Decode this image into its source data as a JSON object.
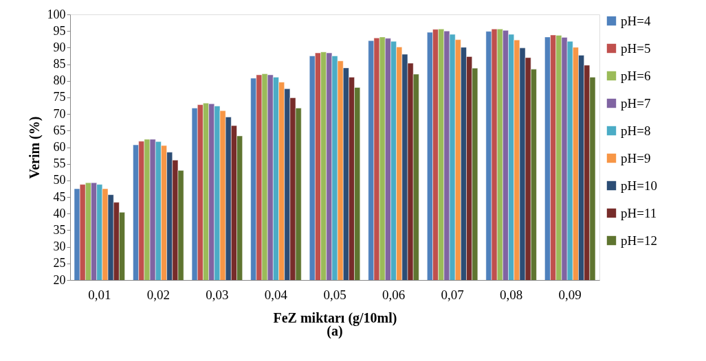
{
  "chart_data": {
    "type": "bar",
    "xlabel": "FeZ miktarı (g/10ml)",
    "ylabel": "Verim (%)",
    "annotations": [
      "(a)"
    ],
    "categories": [
      "0,01",
      "0,02",
      "0,03",
      "0,04",
      "0,05",
      "0,06",
      "0,07",
      "0,08",
      "0,09"
    ],
    "series": [
      {
        "name": "pH=4",
        "color": "#4f81bd",
        "values": [
          47.5,
          60.7,
          71.8,
          80.8,
          87.5,
          92.1,
          94.6,
          94.9,
          93.2
        ]
      },
      {
        "name": "pH=5",
        "color": "#c0504d",
        "values": [
          48.8,
          61.8,
          72.8,
          81.8,
          88.4,
          92.9,
          95.5,
          95.6,
          93.8
        ]
      },
      {
        "name": "pH=6",
        "color": "#9bbb59",
        "values": [
          49.3,
          62.4,
          73.3,
          82.1,
          88.7,
          93.2,
          95.6,
          95.6,
          93.7
        ]
      },
      {
        "name": "pH=7",
        "color": "#8064a2",
        "values": [
          49.3,
          62.4,
          73.1,
          81.8,
          88.4,
          92.8,
          95.0,
          95.2,
          93.1
        ]
      },
      {
        "name": "pH=8",
        "color": "#4bacc6",
        "values": [
          48.8,
          61.7,
          72.4,
          81.1,
          87.5,
          91.9,
          94.0,
          94.0,
          91.9
        ]
      },
      {
        "name": "pH=9",
        "color": "#f79646",
        "values": [
          47.5,
          60.5,
          71.0,
          79.6,
          86.0,
          90.2,
          92.4,
          92.3,
          90.1
        ]
      },
      {
        "name": "pH=10",
        "color": "#2c4d75",
        "values": [
          45.7,
          58.5,
          69.1,
          77.6,
          83.9,
          88.0,
          90.1,
          89.9,
          87.7
        ]
      },
      {
        "name": "pH=11",
        "color": "#772c2a",
        "values": [
          43.4,
          56.1,
          66.5,
          74.9,
          81.1,
          85.3,
          87.3,
          87.0,
          84.7
        ]
      },
      {
        "name": "pH=12",
        "color": "#5f7530",
        "values": [
          40.4,
          53.0,
          63.4,
          71.8,
          78.0,
          82.0,
          83.8,
          83.5,
          81.1
        ]
      }
    ],
    "ylim": [
      20,
      100
    ],
    "yticks": [
      20,
      25,
      30,
      35,
      40,
      45,
      50,
      55,
      60,
      65,
      70,
      75,
      80,
      85,
      90,
      95,
      100
    ],
    "grid": false,
    "legend": "right"
  }
}
